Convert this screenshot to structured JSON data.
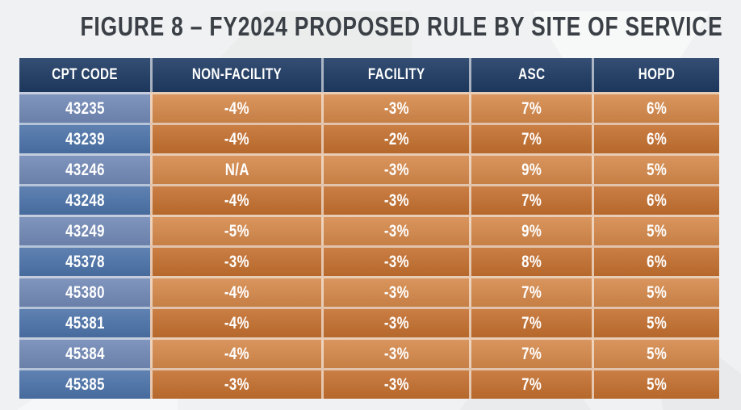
{
  "title": "FIGURE 8 – FY2024 PROPOSED RULE BY SITE OF SERVICE",
  "colors": {
    "page-bg": "#f0f1f2",
    "title-gray": "#3b4047",
    "header-navy": "#1e3a63",
    "row-blue-light": "#7289b6",
    "row-blue-dark": "#4c73a9",
    "row-orange-light": "#d5894b",
    "row-orange-dark": "#c4702f",
    "grid-line": "rgba(255,255,255,0.6)"
  },
  "chart_data": {
    "type": "table",
    "title": "FIGURE 8 – FY2024 PROPOSED RULE BY SITE OF SERVICE",
    "columns": [
      "CPT CODE",
      "NON-FACILITY",
      "FACILITY",
      "ASC",
      "HOPD"
    ],
    "rows": [
      [
        "43235",
        "-4%",
        "-3%",
        "7%",
        "6%"
      ],
      [
        "43239",
        "-4%",
        "-2%",
        "7%",
        "6%"
      ],
      [
        "43246",
        "N/A",
        "-3%",
        "9%",
        "5%"
      ],
      [
        "43248",
        "-4%",
        "-3%",
        "7%",
        "6%"
      ],
      [
        "43249",
        "-5%",
        "-3%",
        "9%",
        "5%"
      ],
      [
        "45378",
        "-3%",
        "-3%",
        "8%",
        "6%"
      ],
      [
        "45380",
        "-4%",
        "-3%",
        "7%",
        "5%"
      ],
      [
        "45381",
        "-4%",
        "-3%",
        "7%",
        "5%"
      ],
      [
        "45384",
        "-4%",
        "-3%",
        "7%",
        "5%"
      ],
      [
        "45385",
        "-3%",
        "-3%",
        "7%",
        "5%"
      ]
    ]
  }
}
